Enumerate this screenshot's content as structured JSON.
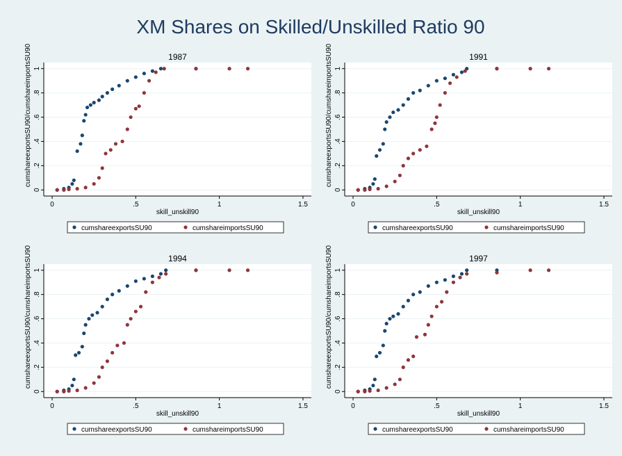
{
  "title": "XM Shares on Skilled/Unskilled Ratio 90",
  "chart_data": [
    {
      "type": "scatter",
      "title": "1987",
      "x_label": "skill_unskill90",
      "y_label": "cumshareexportsSU90/cumshareimportsSU90",
      "xlim": [
        -0.05,
        1.55
      ],
      "xticks": [
        0,
        {
          "value": 0.5,
          "label": ".5"
        },
        1,
        {
          "value": 1.5,
          "label": "1.5"
        }
      ],
      "ylim": [
        -0.05,
        1.05
      ],
      "yticks": [
        0,
        {
          "value": 0.2,
          "label": ".2"
        },
        {
          "value": 0.4,
          "label": ".4"
        },
        {
          "value": 0.6,
          "label": ".6"
        },
        {
          "value": 0.8,
          "label": ".8"
        },
        1
      ],
      "grid": true,
      "series": [
        {
          "name": "cumshareexportsSU90",
          "color": "#1a476f",
          "x": [
            0.03,
            0.07,
            0.1,
            0.12,
            0.13,
            0.15,
            0.17,
            0.18,
            0.19,
            0.2,
            0.21,
            0.23,
            0.25,
            0.28,
            0.3,
            0.33,
            0.36,
            0.4,
            0.45,
            0.5,
            0.55,
            0.6,
            0.65,
            0.86
          ],
          "values": [
            0,
            0.01,
            0.02,
            0.05,
            0.08,
            0.32,
            0.38,
            0.45,
            0.57,
            0.62,
            0.68,
            0.7,
            0.72,
            0.74,
            0.77,
            0.8,
            0.83,
            0.86,
            0.9,
            0.93,
            0.96,
            0.98,
            1,
            1
          ]
        },
        {
          "name": "cumshareimportsSU90",
          "color": "#90353b",
          "x": [
            0.03,
            0.07,
            0.1,
            0.15,
            0.2,
            0.25,
            0.28,
            0.3,
            0.32,
            0.35,
            0.38,
            0.42,
            0.45,
            0.47,
            0.5,
            0.52,
            0.55,
            0.58,
            0.62,
            0.67,
            0.86,
            1.06,
            1.17
          ],
          "values": [
            0,
            0,
            0.005,
            0.01,
            0.02,
            0.05,
            0.1,
            0.18,
            0.3,
            0.33,
            0.38,
            0.4,
            0.5,
            0.6,
            0.67,
            0.69,
            0.8,
            0.9,
            0.97,
            1,
            1,
            1,
            1
          ]
        }
      ]
    },
    {
      "type": "scatter",
      "title": "1991",
      "x_label": "skill_unskill90",
      "y_label": "cumshareexportsSU90/cumshareimportsSU90",
      "xlim": [
        -0.05,
        1.55
      ],
      "xticks": [
        0,
        {
          "value": 0.5,
          "label": ".5"
        },
        1,
        {
          "value": 1.5,
          "label": "1.5"
        }
      ],
      "ylim": [
        -0.05,
        1.05
      ],
      "yticks": [
        0,
        {
          "value": 0.2,
          "label": ".2"
        },
        {
          "value": 0.4,
          "label": ".4"
        },
        {
          "value": 0.6,
          "label": ".6"
        },
        {
          "value": 0.8,
          "label": ".8"
        },
        1
      ],
      "grid": true,
      "series": [
        {
          "name": "cumshareexportsSU90",
          "color": "#1a476f",
          "x": [
            0.03,
            0.07,
            0.1,
            0.12,
            0.13,
            0.14,
            0.16,
            0.18,
            0.19,
            0.2,
            0.22,
            0.24,
            0.27,
            0.3,
            0.33,
            0.36,
            0.4,
            0.45,
            0.5,
            0.55,
            0.6,
            0.65,
            0.68,
            0.86
          ],
          "values": [
            0,
            0.01,
            0.02,
            0.05,
            0.09,
            0.28,
            0.33,
            0.38,
            0.5,
            0.56,
            0.6,
            0.64,
            0.66,
            0.7,
            0.75,
            0.8,
            0.82,
            0.86,
            0.9,
            0.92,
            0.95,
            0.97,
            1,
            1
          ]
        },
        {
          "name": "cumshareimportsSU90",
          "color": "#90353b",
          "x": [
            0.03,
            0.07,
            0.1,
            0.15,
            0.2,
            0.25,
            0.28,
            0.3,
            0.33,
            0.36,
            0.4,
            0.44,
            0.47,
            0.49,
            0.5,
            0.52,
            0.55,
            0.58,
            0.62,
            0.67,
            0.86,
            1.06,
            1.17
          ],
          "values": [
            0,
            0,
            0.005,
            0.01,
            0.03,
            0.07,
            0.12,
            0.2,
            0.26,
            0.3,
            0.33,
            0.36,
            0.5,
            0.55,
            0.6,
            0.7,
            0.8,
            0.88,
            0.93,
            0.98,
            1,
            1,
            1
          ]
        }
      ]
    },
    {
      "type": "scatter",
      "title": "1994",
      "x_label": "skill_unskill90",
      "y_label": "cumshareexportsSU90/cumshareimportsSU90",
      "xlim": [
        -0.05,
        1.55
      ],
      "xticks": [
        0,
        {
          "value": 0.5,
          "label": ".5"
        },
        1,
        {
          "value": 1.5,
          "label": "1.5"
        }
      ],
      "ylim": [
        -0.05,
        1.05
      ],
      "yticks": [
        0,
        {
          "value": 0.2,
          "label": ".2"
        },
        {
          "value": 0.4,
          "label": ".4"
        },
        {
          "value": 0.6,
          "label": ".6"
        },
        {
          "value": 0.8,
          "label": ".8"
        },
        1
      ],
      "grid": true,
      "series": [
        {
          "name": "cumshareexportsSU90",
          "color": "#1a476f",
          "x": [
            0.03,
            0.07,
            0.1,
            0.12,
            0.13,
            0.14,
            0.16,
            0.18,
            0.19,
            0.2,
            0.22,
            0.24,
            0.27,
            0.3,
            0.33,
            0.36,
            0.4,
            0.45,
            0.5,
            0.55,
            0.6,
            0.65,
            0.68,
            0.86
          ],
          "values": [
            0,
            0.01,
            0.02,
            0.05,
            0.1,
            0.3,
            0.32,
            0.37,
            0.48,
            0.55,
            0.6,
            0.63,
            0.65,
            0.7,
            0.76,
            0.8,
            0.83,
            0.87,
            0.91,
            0.93,
            0.95,
            0.97,
            1,
            1
          ]
        },
        {
          "name": "cumshareimportsSU90",
          "color": "#90353b",
          "x": [
            0.03,
            0.07,
            0.1,
            0.15,
            0.2,
            0.25,
            0.28,
            0.3,
            0.33,
            0.36,
            0.39,
            0.43,
            0.45,
            0.47,
            0.5,
            0.53,
            0.56,
            0.6,
            0.64,
            0.68,
            0.86,
            1.06,
            1.17
          ],
          "values": [
            0,
            0,
            0.005,
            0.01,
            0.03,
            0.07,
            0.12,
            0.2,
            0.25,
            0.32,
            0.38,
            0.4,
            0.55,
            0.6,
            0.66,
            0.7,
            0.82,
            0.9,
            0.94,
            0.97,
            1,
            1,
            1
          ]
        }
      ]
    },
    {
      "type": "scatter",
      "title": "1997",
      "x_label": "skill_unskill90",
      "y_label": "cumshareexportsSU90/cumshareimportsSU90",
      "xlim": [
        -0.05,
        1.55
      ],
      "xticks": [
        0,
        {
          "value": 0.5,
          "label": ".5"
        },
        1,
        {
          "value": 1.5,
          "label": "1.5"
        }
      ],
      "ylim": [
        -0.05,
        1.05
      ],
      "yticks": [
        0,
        {
          "value": 0.2,
          "label": ".2"
        },
        {
          "value": 0.4,
          "label": ".4"
        },
        {
          "value": 0.6,
          "label": ".6"
        },
        {
          "value": 0.8,
          "label": ".8"
        },
        1
      ],
      "grid": true,
      "series": [
        {
          "name": "cumshareexportsSU90",
          "color": "#1a476f",
          "x": [
            0.03,
            0.07,
            0.1,
            0.12,
            0.13,
            0.14,
            0.16,
            0.18,
            0.19,
            0.2,
            0.22,
            0.24,
            0.27,
            0.3,
            0.33,
            0.36,
            0.4,
            0.45,
            0.5,
            0.55,
            0.6,
            0.65,
            0.68,
            0.86
          ],
          "values": [
            0,
            0.01,
            0.02,
            0.05,
            0.1,
            0.29,
            0.32,
            0.38,
            0.5,
            0.56,
            0.6,
            0.62,
            0.64,
            0.7,
            0.75,
            0.8,
            0.82,
            0.87,
            0.9,
            0.92,
            0.95,
            0.97,
            1,
            1
          ]
        },
        {
          "name": "cumshareimportsSU90",
          "color": "#90353b",
          "x": [
            0.03,
            0.07,
            0.1,
            0.15,
            0.2,
            0.25,
            0.28,
            0.3,
            0.33,
            0.36,
            0.38,
            0.43,
            0.45,
            0.47,
            0.5,
            0.53,
            0.56,
            0.6,
            0.64,
            0.68,
            0.86,
            1.06,
            1.17
          ],
          "values": [
            0,
            0,
            0.005,
            0.01,
            0.03,
            0.06,
            0.1,
            0.2,
            0.26,
            0.29,
            0.45,
            0.47,
            0.55,
            0.62,
            0.7,
            0.74,
            0.82,
            0.9,
            0.94,
            0.97,
            0.98,
            1,
            1
          ]
        }
      ]
    }
  ]
}
